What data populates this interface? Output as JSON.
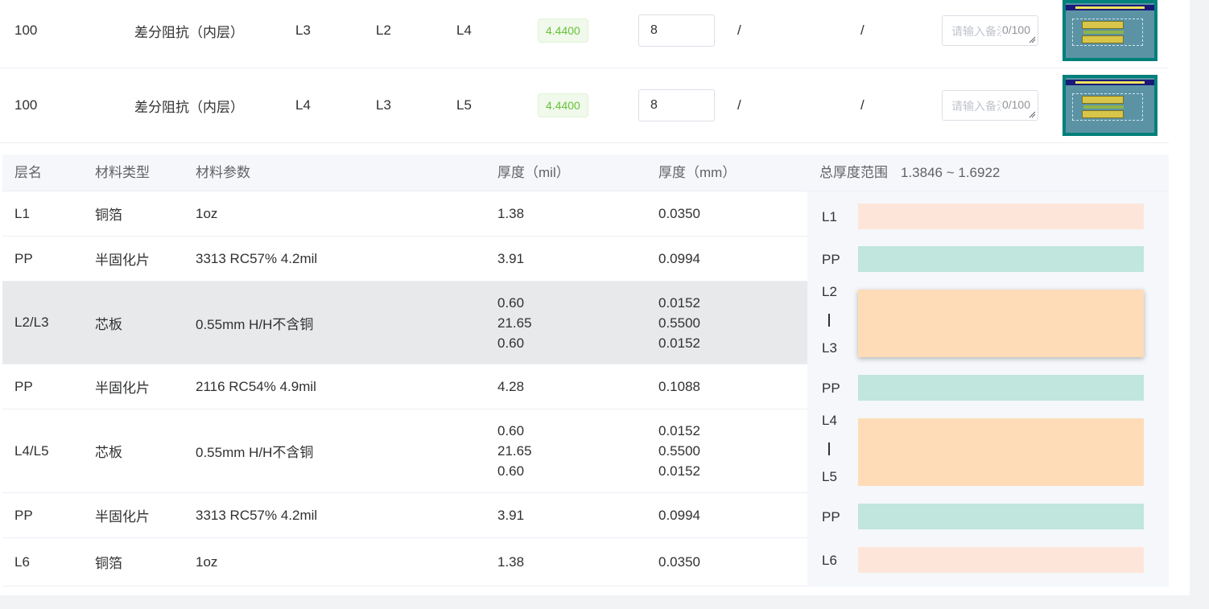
{
  "impedance_rows": [
    {
      "impedance": "100",
      "type": "差分阻抗（内层）",
      "layer": "L3",
      "ref1": "L2",
      "ref2": "L4",
      "line_width": "4.4400",
      "spacing": "8",
      "col_a": "/",
      "col_b": "/",
      "remark_placeholder": "请输入备注",
      "remark_count": "0/100",
      "image_label": "Edge-Coupled Offset Stripline 1B1A"
    },
    {
      "impedance": "100",
      "type": "差分阻抗（内层）",
      "layer": "L4",
      "ref1": "L3",
      "ref2": "L5",
      "line_width": "4.4400",
      "spacing": "8",
      "col_a": "/",
      "col_b": "/",
      "remark_placeholder": "请输入备注",
      "remark_count": "0/100",
      "image_label": "Edge-Coupled Offset Stripline 1B1A"
    }
  ],
  "stackup": {
    "headers": {
      "layer": "层名",
      "material_type": "材料类型",
      "material_param": "材料参数",
      "thickness_mil": "厚度（mil）",
      "thickness_mm": "厚度（mm）",
      "total_label": "总厚度范围",
      "total_range": "1.3846 ~ 1.6922"
    },
    "rows": [
      {
        "layer": "L1",
        "type": "铜箔",
        "param": "1oz",
        "mil": [
          "1.38"
        ],
        "mm": [
          "0.0350"
        ],
        "kind": "cu"
      },
      {
        "layer": "PP",
        "type": "半固化片",
        "param": "3313 RC57% 4.2mil",
        "mil": [
          "3.91"
        ],
        "mm": [
          "0.0994"
        ],
        "kind": "pp"
      },
      {
        "layer": "L2/L3",
        "type": "芯板",
        "param": "0.55mm H/H不含铜",
        "mil": [
          "0.60",
          "21.65",
          "0.60"
        ],
        "mm": [
          "0.0152",
          "0.5500",
          "0.0152"
        ],
        "kind": "core",
        "selected": true
      },
      {
        "layer": "PP",
        "type": "半固化片",
        "param": "2116 RC54% 4.9mil",
        "mil": [
          "4.28"
        ],
        "mm": [
          "0.1088"
        ],
        "kind": "pp"
      },
      {
        "layer": "L4/L5",
        "type": "芯板",
        "param": "0.55mm H/H不含铜",
        "mil": [
          "0.60",
          "21.65",
          "0.60"
        ],
        "mm": [
          "0.0152",
          "0.5500",
          "0.0152"
        ],
        "kind": "core"
      },
      {
        "layer": "PP",
        "type": "半固化片",
        "param": "3313 RC57% 4.2mil",
        "mil": [
          "3.91"
        ],
        "mm": [
          "0.0994"
        ],
        "kind": "pp"
      },
      {
        "layer": "L6",
        "type": "铜箔",
        "param": "1oz",
        "mil": [
          "1.38"
        ],
        "mm": [
          "0.0350"
        ],
        "kind": "cu"
      }
    ],
    "viz": {
      "labels": [
        "L1",
        "PP",
        "L2",
        "L3",
        "PP",
        "L4",
        "L5",
        "PP",
        "L6"
      ],
      "separator": "|"
    }
  },
  "colors": {
    "copper": "#fde6d9",
    "prepreg": "#c0e6dd",
    "core": "#ffdcb8",
    "badge_text": "#67c23a",
    "badge_bg": "#f0f9eb"
  }
}
